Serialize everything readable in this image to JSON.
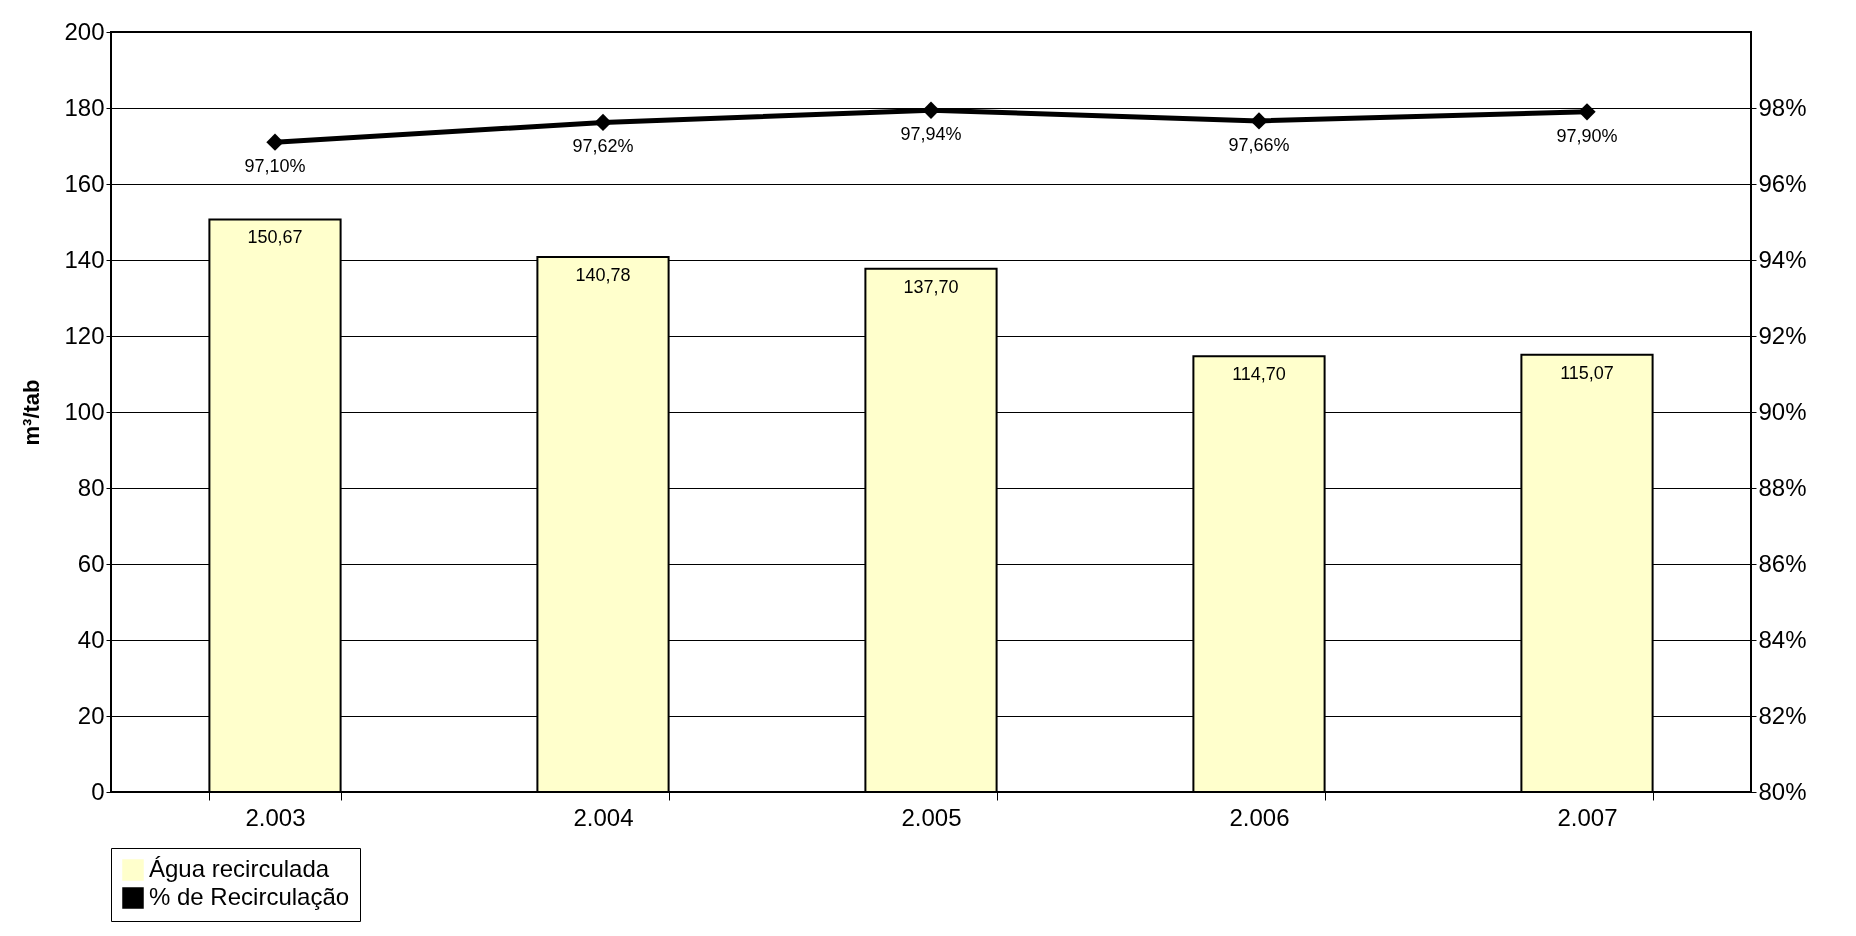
{
  "chart_data": {
    "type": "bar",
    "ylabel": "m³/tab",
    "categories": [
      "2.003",
      "2.004",
      "2.005",
      "2.006",
      "2.007"
    ],
    "series": [
      {
        "name": "Água recirculada",
        "color": "#ffffcc",
        "values": [
          150.67,
          140.78,
          137.7,
          114.7,
          115.07
        ],
        "value_labels": [
          "150,67",
          "140,78",
          "137,70",
          "114,70",
          "115,07"
        ]
      },
      {
        "type": "line",
        "axis": "y2",
        "name": "% de Recirculação",
        "color": "#000000",
        "marker": "diamond",
        "line_style": "solid",
        "values": [
          97.1,
          97.62,
          97.94,
          97.66,
          97.9
        ],
        "value_labels": [
          "97,10%",
          "97,62%",
          "97,94%",
          "97,66%",
          "97,90%"
        ]
      }
    ],
    "ylim": [
      0,
      200
    ],
    "yticks": [
      0,
      20,
      40,
      60,
      80,
      100,
      120,
      140,
      160,
      180,
      200
    ],
    "y2lim": [
      80,
      100
    ],
    "y2ticks": [
      {
        "value": 80,
        "label": "80%"
      },
      {
        "value": 82,
        "label": "82%"
      },
      {
        "value": 84,
        "label": "84%"
      },
      {
        "value": 86,
        "label": "86%"
      },
      {
        "value": 88,
        "label": "88%"
      },
      {
        "value": 90,
        "label": "90%"
      },
      {
        "value": 92,
        "label": "92%"
      },
      {
        "value": 94,
        "label": "94%"
      },
      {
        "value": 96,
        "label": "96%"
      },
      {
        "value": 98,
        "label": "98%"
      }
    ],
    "grid": "y",
    "legend": "bottom"
  }
}
